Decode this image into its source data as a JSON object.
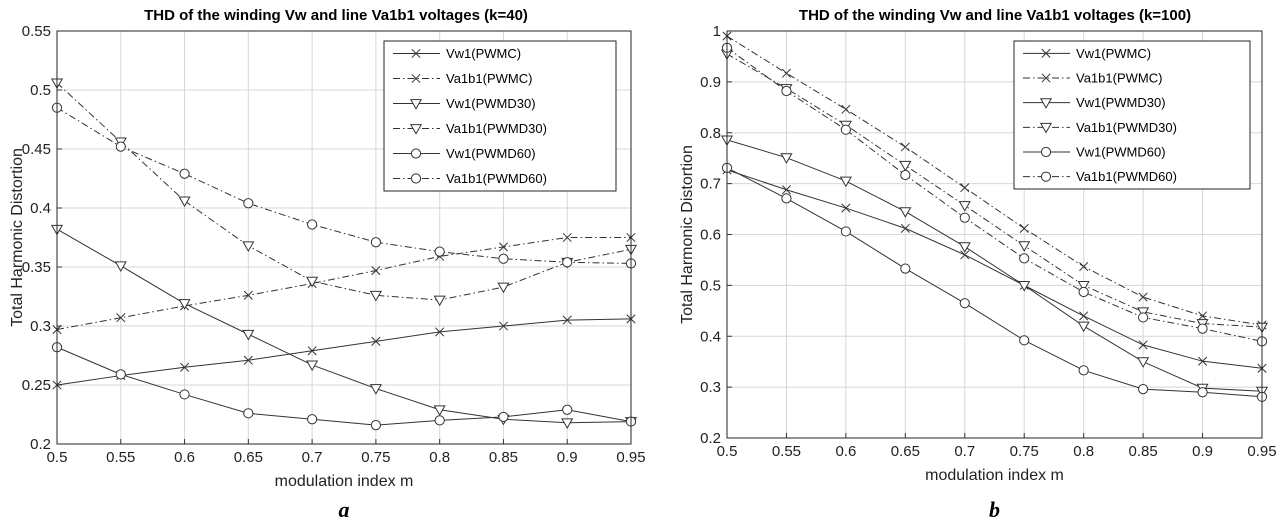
{
  "chart_data": [
    {
      "type": "line",
      "title": "THD of the winding Vw and line Va1b1 voltages (k=40)",
      "xlabel": "modulation index m",
      "ylabel": "Total Harmonic Distortion",
      "panel_label": "a",
      "xlim": [
        0.5,
        0.95
      ],
      "ylim": [
        0.2,
        0.55
      ],
      "grid": true,
      "legend_position": "top-right",
      "x": [
        0.5,
        0.55,
        0.6,
        0.65,
        0.7,
        0.75,
        0.8,
        0.85,
        0.9,
        0.95
      ],
      "xticks": [
        "0.5",
        "0.55",
        "0.6",
        "0.65",
        "0.7",
        "0.75",
        "0.8",
        "0.85",
        "0.9",
        "0.95"
      ],
      "yticks": [
        "0.2",
        "0.25",
        "0.3",
        "0.35",
        "0.4",
        "0.45",
        "0.5",
        "0.55"
      ],
      "series": [
        {
          "name": "Vw1(PWMC)",
          "marker": "x",
          "dash": "solid",
          "values": [
            0.25,
            0.258,
            0.265,
            0.271,
            0.279,
            0.287,
            0.295,
            0.3,
            0.305,
            0.306
          ]
        },
        {
          "name": "Va1b1(PWMC)",
          "marker": "x",
          "dash": "dashdot",
          "values": [
            0.297,
            0.307,
            0.317,
            0.326,
            0.336,
            0.347,
            0.359,
            0.367,
            0.375,
            0.375
          ]
        },
        {
          "name": "Vw1(PWMD30)",
          "marker": "triangle-down",
          "dash": "solid",
          "values": [
            0.382,
            0.351,
            0.319,
            0.293,
            0.267,
            0.247,
            0.229,
            0.221,
            0.218,
            0.219
          ]
        },
        {
          "name": "Va1b1(PWMD30)",
          "marker": "triangle-down",
          "dash": "dashdot",
          "values": [
            0.506,
            0.456,
            0.406,
            0.368,
            0.338,
            0.326,
            0.322,
            0.333,
            0.354,
            0.365
          ]
        },
        {
          "name": "Vw1(PWMD60)",
          "marker": "circle",
          "dash": "solid",
          "values": [
            0.282,
            0.259,
            0.242,
            0.226,
            0.221,
            0.216,
            0.22,
            0.223,
            0.229,
            0.219
          ]
        },
        {
          "name": "Va1b1(PWMD60)",
          "marker": "circle",
          "dash": "dashdot",
          "values": [
            0.485,
            0.452,
            0.429,
            0.404,
            0.386,
            0.371,
            0.363,
            0.357,
            0.354,
            0.353
          ]
        }
      ]
    },
    {
      "type": "line",
      "title": "THD of the winding Vw and line Va1b1 voltages (k=100)",
      "xlabel": "modulation index m",
      "ylabel": "Total Harmonic Distortion",
      "panel_label": "b",
      "xlim": [
        0.5,
        0.95
      ],
      "ylim": [
        0.2,
        1.0
      ],
      "grid": true,
      "legend_position": "top-right",
      "x": [
        0.5,
        0.55,
        0.6,
        0.65,
        0.7,
        0.75,
        0.8,
        0.85,
        0.9,
        0.95
      ],
      "xticks": [
        "0.5",
        "0.55",
        "0.6",
        "0.65",
        "0.7",
        "0.75",
        "0.8",
        "0.85",
        "0.9",
        "0.95"
      ],
      "yticks": [
        "0.2",
        "0.3",
        "0.4",
        "0.5",
        "0.6",
        "0.7",
        "0.8",
        "0.9",
        "1"
      ],
      "series": [
        {
          "name": "Vw1(PWMC)",
          "marker": "x",
          "dash": "solid",
          "values": [
            0.727,
            0.688,
            0.652,
            0.612,
            0.56,
            0.5,
            0.44,
            0.383,
            0.351,
            0.337
          ]
        },
        {
          "name": "Va1b1(PWMC)",
          "marker": "x",
          "dash": "dashdot",
          "values": [
            0.99,
            0.917,
            0.846,
            0.772,
            0.692,
            0.612,
            0.537,
            0.477,
            0.44,
            0.422
          ]
        },
        {
          "name": "Vw1(PWMD30)",
          "marker": "triangle-down",
          "dash": "solid",
          "values": [
            0.786,
            0.751,
            0.705,
            0.645,
            0.576,
            0.5,
            0.42,
            0.35,
            0.298,
            0.292
          ]
        },
        {
          "name": "Va1b1(PWMD30)",
          "marker": "triangle-down",
          "dash": "dashdot",
          "values": [
            0.955,
            0.887,
            0.815,
            0.736,
            0.657,
            0.578,
            0.5,
            0.448,
            0.425,
            0.418
          ]
        },
        {
          "name": "Vw1(PWMD60)",
          "marker": "circle",
          "dash": "solid",
          "values": [
            0.731,
            0.671,
            0.606,
            0.533,
            0.465,
            0.392,
            0.333,
            0.296,
            0.29,
            0.281
          ]
        },
        {
          "name": "Va1b1(PWMD60)",
          "marker": "circle",
          "dash": "dashdot",
          "values": [
            0.967,
            0.882,
            0.806,
            0.717,
            0.633,
            0.553,
            0.487,
            0.437,
            0.415,
            0.39
          ]
        }
      ]
    }
  ]
}
